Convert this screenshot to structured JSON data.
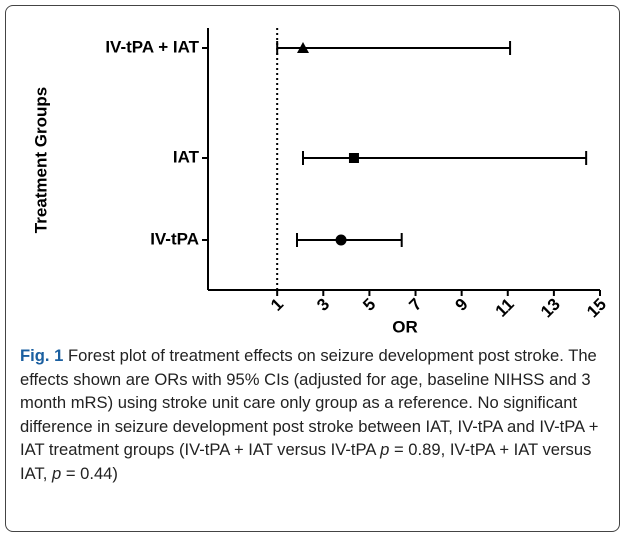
{
  "chart_data": {
    "type": "forest",
    "xlabel": "OR",
    "ylabel": "Treatment Groups",
    "categories": [
      "IV-tPA",
      "IAT",
      "IV-tPA + IAT"
    ],
    "values": [
      3.77,
      4.33,
      2.12
    ],
    "ci_low": [
      1.86,
      2.12,
      1.0
    ],
    "ci_high": [
      6.4,
      14.4,
      11.1
    ],
    "markers": [
      "circle",
      "square",
      "triangle"
    ],
    "color": "#000000",
    "reference_line": 1,
    "xlim": [
      -2,
      15
    ],
    "xticks": [
      1,
      3,
      5,
      7,
      9,
      11,
      13,
      15
    ]
  },
  "caption": {
    "label": "Fig. 1",
    "runs": [
      "Forest plot of treatment effects on seizure development post stroke. The effects shown are ORs with 95% CIs (adjusted for age, baseline NIHSS and 3 month mRS) using stroke unit care only group as a reference. No significant difference in seizure development post stroke between IAT, IV-tPA and IV-tPA + IAT treatment groups (IV-tPA + IAT versus IV-tPA ",
      "p",
      " = 0.89, IV-tPA + IAT versus IAT, ",
      "p",
      " = 0.44)"
    ]
  }
}
